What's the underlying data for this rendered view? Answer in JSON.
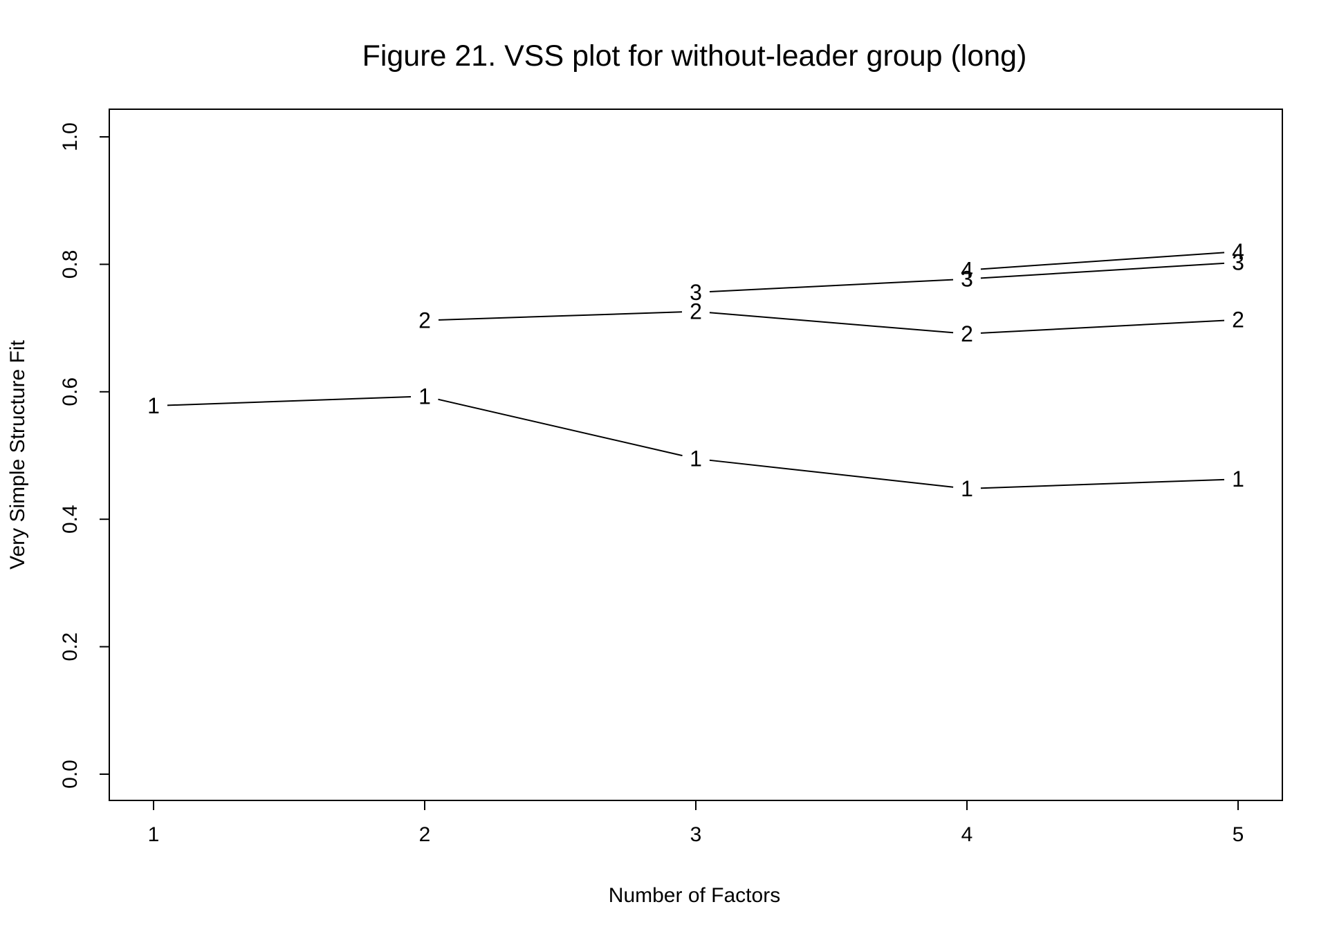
{
  "chart_data": {
    "type": "line",
    "title": "Figure 21. VSS plot for without-leader group (long)",
    "xlabel": "Number of Factors",
    "ylabel": "Very Simple Structure Fit",
    "x": [
      1,
      2,
      3,
      4,
      5
    ],
    "x_tick_labels": [
      "1",
      "2",
      "3",
      "4",
      "5"
    ],
    "y_ticks": [
      "0.0",
      "0.2",
      "0.4",
      "0.6",
      "0.8",
      "1.0"
    ],
    "ylim": [
      0,
      1
    ],
    "xlim": [
      1,
      5
    ],
    "grid": false,
    "series": [
      {
        "name": "1",
        "x": [
          1,
          2,
          3,
          4,
          5
        ],
        "values": [
          0.578,
          0.593,
          0.495,
          0.448,
          0.463
        ]
      },
      {
        "name": "2",
        "x": [
          2,
          3,
          4,
          5
        ],
        "values": [
          0.712,
          0.726,
          0.691,
          0.713
        ]
      },
      {
        "name": "3",
        "x": [
          3,
          4,
          5
        ],
        "values": [
          0.756,
          0.777,
          0.803
        ]
      },
      {
        "name": "4",
        "x": [
          4,
          5
        ],
        "values": [
          0.791,
          0.82
        ]
      }
    ]
  }
}
